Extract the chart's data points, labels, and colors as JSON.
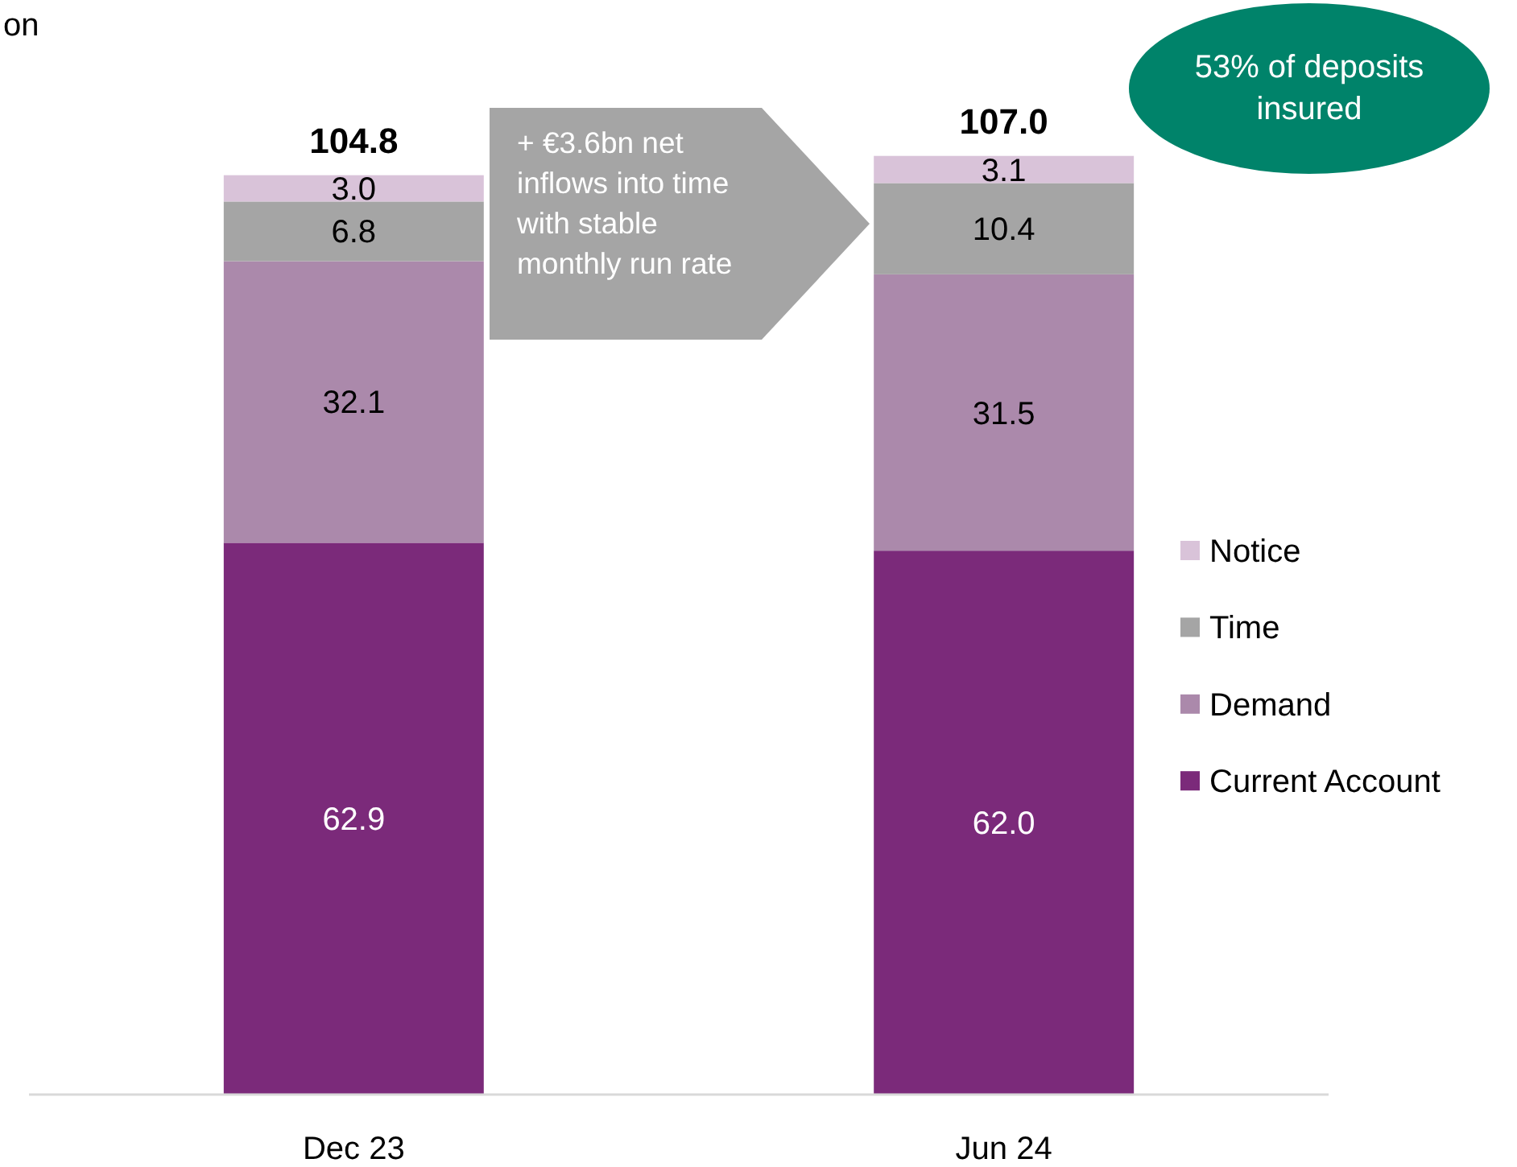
{
  "chart_data": {
    "type": "bar",
    "stacked": true,
    "ylabel": "on",
    "categories": [
      "Dec 23",
      "Jun 24"
    ],
    "series": [
      {
        "name": "Current Account",
        "color": "#7b2a7a",
        "values": [
          62.9,
          62.0
        ],
        "value_labels": [
          "62.9",
          "62.0"
        ]
      },
      {
        "name": "Demand",
        "color": "#ab89ab",
        "values": [
          32.1,
          31.5
        ],
        "value_labels": [
          "32.1",
          "31.5"
        ]
      },
      {
        "name": "Time",
        "color": "#a5a5a5",
        "values": [
          6.8,
          10.4
        ],
        "value_labels": [
          "6.8",
          "10.4"
        ]
      },
      {
        "name": "Notice",
        "color": "#d9c3d9",
        "values": [
          3.0,
          3.1
        ],
        "value_labels": [
          "3.0",
          "3.1"
        ]
      }
    ],
    "totals": [
      "104.8",
      "107.0"
    ],
    "legend": "right",
    "annotations": [
      "+ €3.6bn net inflows into time with stable monthly run rate",
      "53% of deposits insured"
    ]
  }
}
